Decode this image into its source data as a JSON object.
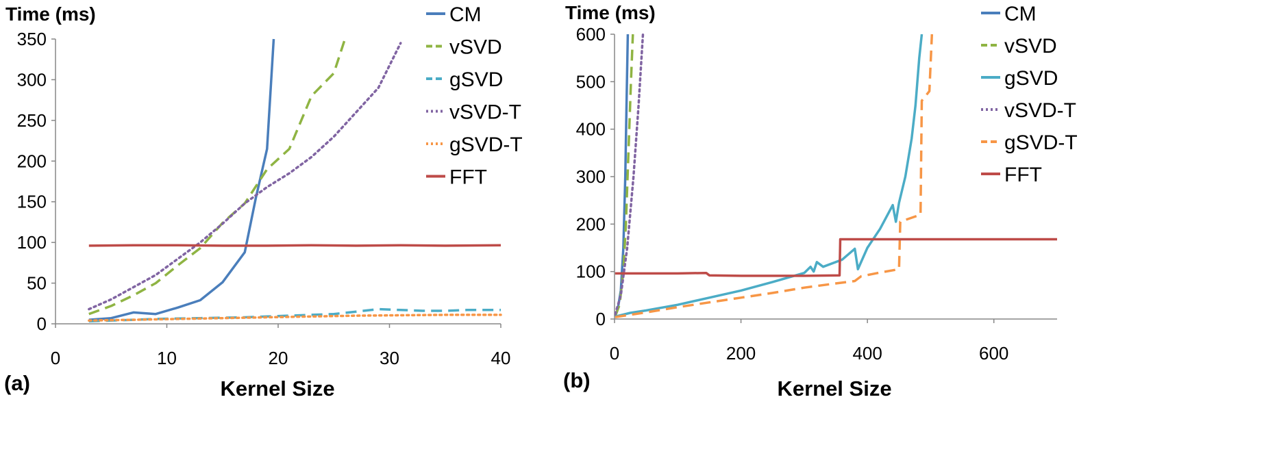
{
  "chart_data": [
    {
      "type": "line",
      "panel_label": "(a)",
      "unit_label": "Time (ms)",
      "xlabel": "Kernel Size",
      "xlim": [
        0,
        40
      ],
      "ylim": [
        0,
        350
      ],
      "xticks": [
        0,
        10,
        20,
        30,
        40
      ],
      "yticks": [
        0,
        50,
        100,
        150,
        200,
        250,
        300,
        350
      ],
      "legend_position": "right",
      "series": [
        {
          "name": "CM",
          "color": "#4a7ebb",
          "dash": "solid",
          "points": [
            [
              3,
              5
            ],
            [
              5,
              7
            ],
            [
              7,
              14
            ],
            [
              9,
              12
            ],
            [
              11,
              20
            ],
            [
              13,
              29
            ],
            [
              15,
              51
            ],
            [
              17,
              88
            ],
            [
              18,
              155
            ],
            [
              19,
              215
            ],
            [
              19.6,
              350
            ]
          ]
        },
        {
          "name": "vSVD",
          "color": "#8fb443",
          "dash": "dashed",
          "points": [
            [
              3,
              12
            ],
            [
              5,
              22
            ],
            [
              7,
              35
            ],
            [
              9,
              50
            ],
            [
              11,
              72
            ],
            [
              13,
              93
            ],
            [
              15,
              124
            ],
            [
              17,
              148
            ],
            [
              19,
              190
            ],
            [
              21,
              215
            ],
            [
              23,
              280
            ],
            [
              25,
              308
            ],
            [
              26,
              350
            ]
          ]
        },
        {
          "name": "gSVD",
          "color": "#4bacc6",
          "dash": "dashed",
          "points": [
            [
              3,
              3
            ],
            [
              5,
              4
            ],
            [
              7,
              5
            ],
            [
              9,
              6
            ],
            [
              11,
              6.5
            ],
            [
              13,
              7
            ],
            [
              15,
              7.5
            ],
            [
              17,
              8
            ],
            [
              19,
              9
            ],
            [
              21,
              10
            ],
            [
              23,
              11
            ],
            [
              25,
              12
            ],
            [
              27,
              15
            ],
            [
              29,
              18
            ],
            [
              31,
              17
            ],
            [
              33,
              16
            ],
            [
              35,
              16
            ],
            [
              37,
              17
            ],
            [
              40,
              17
            ]
          ]
        },
        {
          "name": "vSVD-T",
          "color": "#8064a2",
          "dash": "dotted",
          "points": [
            [
              3,
              18
            ],
            [
              5,
              30
            ],
            [
              7,
              45
            ],
            [
              9,
              60
            ],
            [
              11,
              80
            ],
            [
              13,
              100
            ],
            [
              15,
              123
            ],
            [
              17,
              148
            ],
            [
              19,
              168
            ],
            [
              21,
              185
            ],
            [
              23,
              205
            ],
            [
              25,
              230
            ],
            [
              27,
              260
            ],
            [
              29,
              290
            ],
            [
              31,
              345
            ]
          ]
        },
        {
          "name": "gSVD-T",
          "color": "#f79646",
          "dash": "dotted",
          "points": [
            [
              3,
              4
            ],
            [
              7,
              5
            ],
            [
              11,
              6
            ],
            [
              15,
              7
            ],
            [
              19,
              8
            ],
            [
              23,
              9
            ],
            [
              27,
              10
            ],
            [
              31,
              10.5
            ],
            [
              35,
              11
            ],
            [
              40,
              11
            ]
          ]
        },
        {
          "name": "FFT",
          "color": "#be4b48",
          "dash": "solid",
          "points": [
            [
              3,
              96
            ],
            [
              7,
              96.5
            ],
            [
              11,
              96.5
            ],
            [
              15,
              96
            ],
            [
              19,
              96
            ],
            [
              23,
              96.5
            ],
            [
              27,
              96
            ],
            [
              31,
              96.5
            ],
            [
              35,
              96
            ],
            [
              40,
              96.5
            ]
          ]
        }
      ]
    },
    {
      "type": "line",
      "panel_label": "(b)",
      "unit_label": "Time (ms)",
      "xlabel": "Kernel Size",
      "xlim": [
        0,
        700
      ],
      "ylim": [
        0,
        600
      ],
      "xticks": [
        0,
        200,
        400,
        600
      ],
      "yticks": [
        0,
        100,
        200,
        300,
        400,
        500,
        600
      ],
      "legend_position": "right",
      "series": [
        {
          "name": "CM",
          "color": "#4a7ebb",
          "dash": "solid",
          "points": [
            [
              1,
              5
            ],
            [
              5,
              20
            ],
            [
              10,
              60
            ],
            [
              14,
              150
            ],
            [
              17,
              300
            ],
            [
              19,
              450
            ],
            [
              21,
              600
            ]
          ]
        },
        {
          "name": "vSVD",
          "color": "#8fb443",
          "dash": "dashed",
          "points": [
            [
              1,
              6
            ],
            [
              8,
              30
            ],
            [
              14,
              100
            ],
            [
              18,
              200
            ],
            [
              22,
              350
            ],
            [
              26,
              500
            ],
            [
              29,
              600
            ]
          ]
        },
        {
          "name": "gSVD",
          "color": "#4bacc6",
          "dash": "solid",
          "points": [
            [
              1,
              5
            ],
            [
              25,
              13
            ],
            [
              50,
              18
            ],
            [
              100,
              30
            ],
            [
              150,
              45
            ],
            [
              200,
              60
            ],
            [
              250,
              78
            ],
            [
              300,
              97
            ],
            [
              310,
              110
            ],
            [
              315,
              100
            ],
            [
              320,
              120
            ],
            [
              330,
              110
            ],
            [
              360,
              125
            ],
            [
              380,
              148
            ],
            [
              385,
              105
            ],
            [
              400,
              150
            ],
            [
              420,
              190
            ],
            [
              440,
              240
            ],
            [
              445,
              205
            ],
            [
              450,
              245
            ],
            [
              460,
              300
            ],
            [
              470,
              380
            ],
            [
              476,
              450
            ],
            [
              482,
              550
            ],
            [
              486,
              600
            ]
          ]
        },
        {
          "name": "vSVD-T",
          "color": "#8064a2",
          "dash": "dotted",
          "points": [
            [
              1,
              10
            ],
            [
              10,
              50
            ],
            [
              20,
              150
            ],
            [
              30,
              300
            ],
            [
              38,
              450
            ],
            [
              45,
              600
            ]
          ]
        },
        {
          "name": "gSVD-T",
          "color": "#f79646",
          "dash": "dashed",
          "points": [
            [
              1,
              4
            ],
            [
              50,
              14
            ],
            [
              100,
              25
            ],
            [
              150,
              35
            ],
            [
              200,
              45
            ],
            [
              250,
              55
            ],
            [
              300,
              66
            ],
            [
              350,
              75
            ],
            [
              380,
              80
            ],
            [
              390,
              90
            ],
            [
              420,
              98
            ],
            [
              450,
              105
            ],
            [
              452,
              205
            ],
            [
              484,
              220
            ],
            [
              486,
              460
            ],
            [
              498,
              480
            ],
            [
              502,
              600
            ]
          ]
        },
        {
          "name": "FFT",
          "color": "#be4b48",
          "dash": "solid",
          "points": [
            [
              1,
              96
            ],
            [
              50,
              96
            ],
            [
              100,
              96
            ],
            [
              145,
              97
            ],
            [
              150,
              92
            ],
            [
              200,
              91
            ],
            [
              250,
              91
            ],
            [
              300,
              91
            ],
            [
              356,
              92
            ],
            [
              357,
              168
            ],
            [
              400,
              168
            ],
            [
              450,
              168
            ],
            [
              500,
              168
            ],
            [
              550,
              168
            ],
            [
              600,
              168
            ],
            [
              650,
              168
            ],
            [
              700,
              168
            ]
          ]
        }
      ]
    }
  ]
}
